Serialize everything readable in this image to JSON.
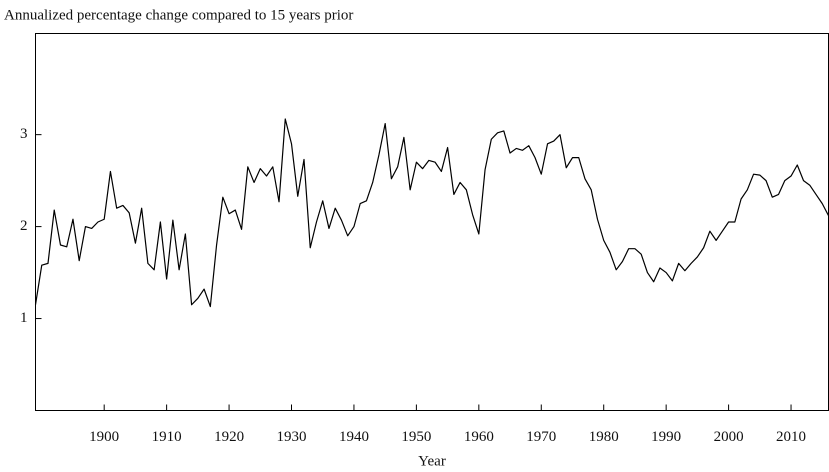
{
  "chart_data": {
    "type": "line",
    "title": "Annualized percentage change compared to 15 years prior",
    "xlabel": "Year",
    "x": [
      1889,
      1890,
      1891,
      1892,
      1893,
      1894,
      1895,
      1896,
      1897,
      1898,
      1899,
      1900,
      1901,
      1902,
      1903,
      1904,
      1905,
      1906,
      1907,
      1908,
      1909,
      1910,
      1911,
      1912,
      1913,
      1914,
      1915,
      1916,
      1917,
      1918,
      1919,
      1920,
      1921,
      1922,
      1923,
      1924,
      1925,
      1926,
      1927,
      1928,
      1929,
      1930,
      1931,
      1932,
      1933,
      1934,
      1935,
      1936,
      1937,
      1938,
      1939,
      1940,
      1941,
      1942,
      1943,
      1944,
      1945,
      1946,
      1947,
      1948,
      1949,
      1950,
      1951,
      1952,
      1953,
      1954,
      1955,
      1956,
      1957,
      1958,
      1959,
      1960,
      1961,
      1962,
      1963,
      1964,
      1965,
      1966,
      1967,
      1968,
      1969,
      1970,
      1971,
      1972,
      1973,
      1974,
      1975,
      1976,
      1977,
      1978,
      1979,
      1980,
      1981,
      1982,
      1983,
      1984,
      1985,
      1986,
      1987,
      1988,
      1989,
      1990,
      1991,
      1992,
      1993,
      1994,
      1995,
      1996,
      1997,
      1998,
      1999,
      2000,
      2001,
      2002,
      2003,
      2004,
      2005,
      2006,
      2007,
      2008,
      2009,
      2010,
      2011,
      2012,
      2013,
      2014,
      2015,
      2016
    ],
    "series": [
      {
        "color": "#000000",
        "values": [
          1.15,
          1.58,
          1.6,
          2.18,
          1.8,
          1.78,
          2.08,
          1.63,
          2.0,
          1.98,
          2.05,
          2.08,
          2.6,
          2.2,
          2.23,
          2.15,
          1.82,
          2.2,
          1.6,
          1.53,
          2.05,
          1.43,
          2.07,
          1.53,
          1.92,
          1.15,
          1.22,
          1.32,
          1.13,
          1.8,
          2.32,
          2.14,
          2.18,
          1.97,
          2.65,
          2.48,
          2.63,
          2.55,
          2.65,
          2.27,
          3.17,
          2.9,
          2.33,
          2.73,
          1.77,
          2.05,
          2.28,
          1.98,
          2.2,
          2.07,
          1.9,
          2.0,
          2.25,
          2.28,
          2.48,
          2.78,
          3.12,
          2.52,
          2.65,
          2.97,
          2.4,
          2.7,
          2.63,
          2.72,
          2.7,
          2.6,
          2.86,
          2.35,
          2.48,
          2.4,
          2.13,
          1.92,
          2.62,
          2.95,
          3.02,
          3.04,
          2.8,
          2.85,
          2.83,
          2.88,
          2.75,
          2.57,
          2.9,
          2.93,
          3.0,
          2.64,
          2.75,
          2.75,
          2.52,
          2.4,
          2.08,
          1.85,
          1.72,
          1.53,
          1.62,
          1.76,
          1.76,
          1.7,
          1.5,
          1.4,
          1.55,
          1.5,
          1.41,
          1.6,
          1.52,
          1.6,
          1.67,
          1.77,
          1.95,
          1.85,
          1.95,
          2.05,
          2.05,
          2.3,
          2.4,
          2.57,
          2.56,
          2.5,
          2.32,
          2.35,
          2.5,
          2.55,
          2.67,
          2.5,
          2.45,
          2.35,
          2.25,
          2.12
        ]
      }
    ],
    "xlim": [
      1889,
      2016
    ],
    "ylim": [
      0,
      4.1
    ],
    "xticks": [
      1900,
      1910,
      1920,
      1930,
      1940,
      1950,
      1960,
      1970,
      1980,
      1990,
      2000,
      2010
    ],
    "yticks": [
      1,
      2,
      3
    ]
  }
}
